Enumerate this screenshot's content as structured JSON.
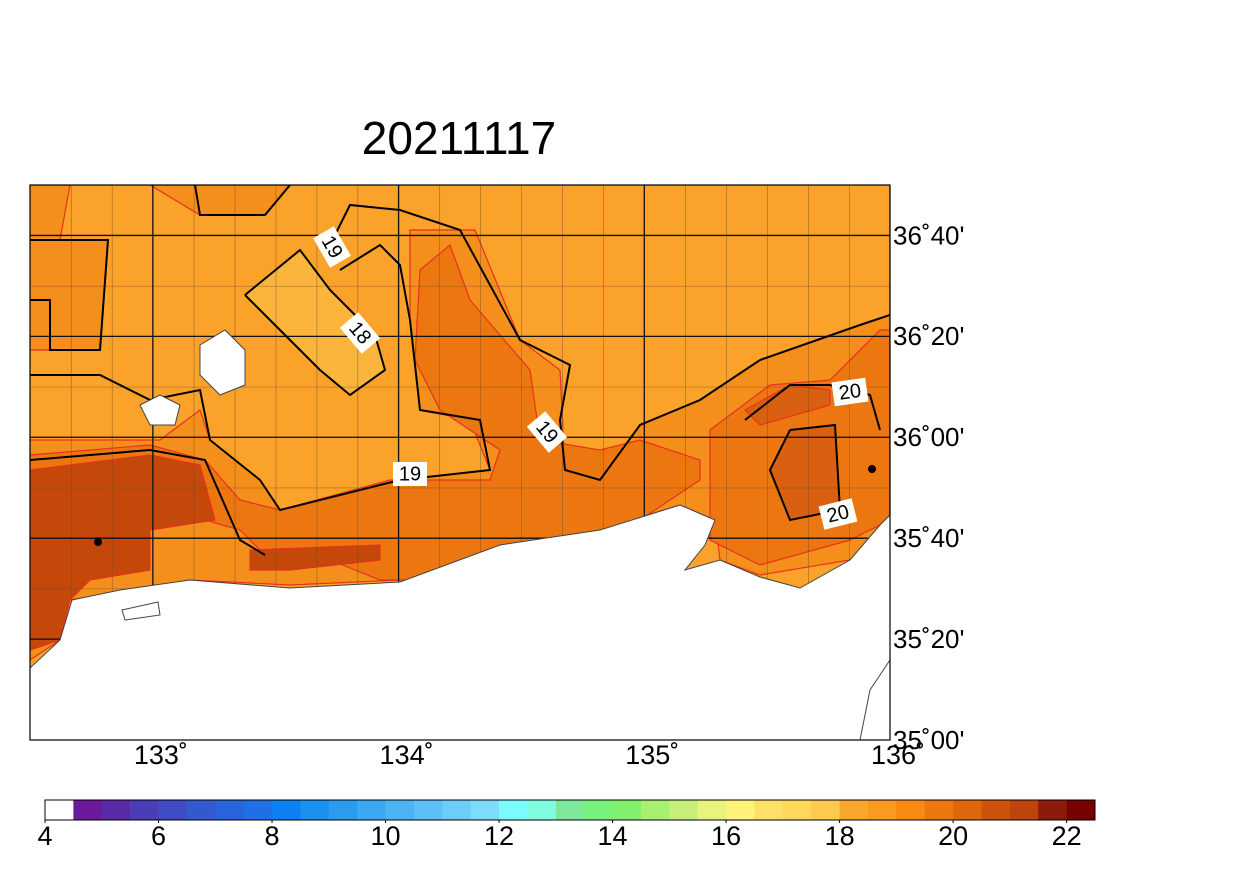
{
  "title": "20211117",
  "map": {
    "xlim": [
      132.5,
      136
    ],
    "ylim": [
      35,
      36.8333
    ],
    "xticks": [
      {
        "value": 133,
        "label": "133˚"
      },
      {
        "value": 134,
        "label": "134˚"
      },
      {
        "value": 135,
        "label": "135˚"
      },
      {
        "value": 136,
        "label": "136˚"
      }
    ],
    "yticks": [
      {
        "value": 35,
        "label": "35˚00'"
      },
      {
        "value": 35.3333,
        "label": "35˚20'"
      },
      {
        "value": 35.6667,
        "label": "35˚40'"
      },
      {
        "value": 36,
        "label": "36˚00'"
      },
      {
        "value": 36.3333,
        "label": "36˚20'"
      },
      {
        "value": 36.6667,
        "label": "36˚40'"
      }
    ],
    "contour_labels": [
      "19",
      "18",
      "19",
      "19",
      "20",
      "20"
    ]
  },
  "colorbar": {
    "range": [
      4,
      22.5
    ],
    "ticks": [
      4,
      6,
      8,
      10,
      12,
      14,
      16,
      18,
      20,
      22
    ],
    "colors": [
      "#ffffff",
      "#6a1a9a",
      "#5a2aa8",
      "#4b3cb8",
      "#3f4cc6",
      "#3358d0",
      "#2a64da",
      "#1f70e6",
      "#0d80f2",
      "#1a90f0",
      "#2a9cf0",
      "#3aa8f2",
      "#4ab4f4",
      "#5cc0f6",
      "#6ccef8",
      "#7cdcfa",
      "#7afcfc",
      "#80fce0",
      "#7ee89a",
      "#78f07c",
      "#80f06c",
      "#a8f070",
      "#c8f078",
      "#e8f47c",
      "#fef27a",
      "#fde066",
      "#fdd85a",
      "#fcca4e",
      "#f9a62c",
      "#fa9a22",
      "#f88a14",
      "#ec7710",
      "#e0660c",
      "#cf520a",
      "#bd440a",
      "#8e1a0a",
      "#780000"
    ]
  }
}
